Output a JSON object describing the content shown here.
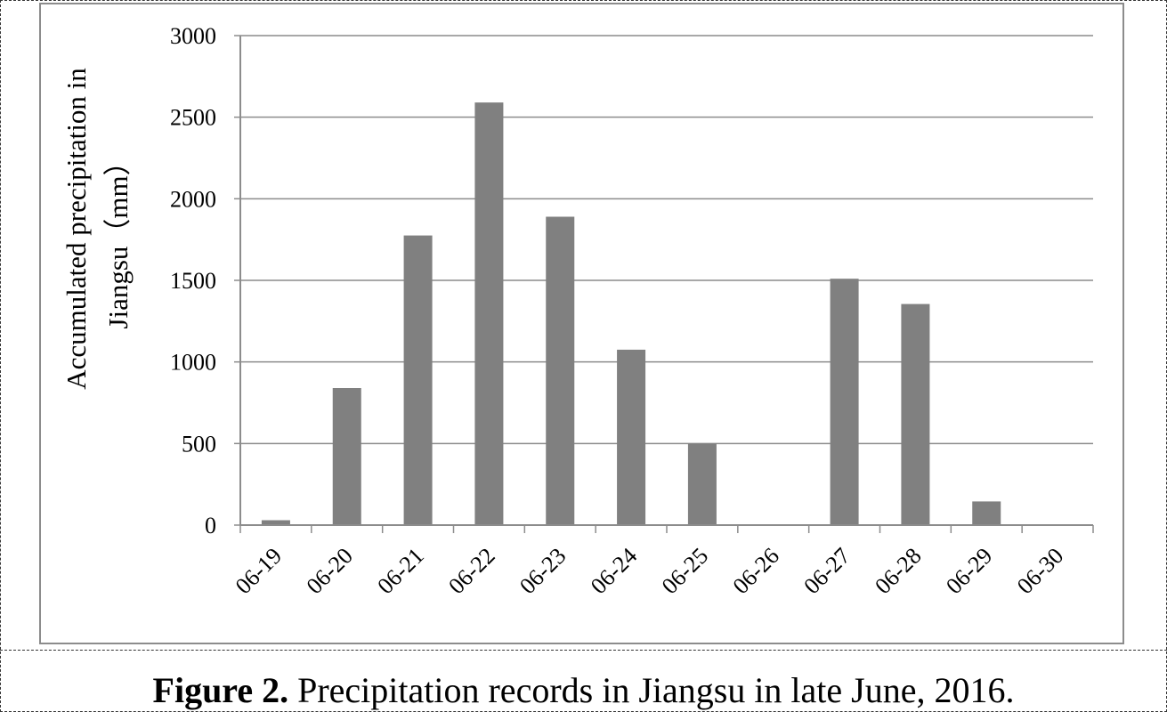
{
  "caption": {
    "label": "Figure 2.",
    "text": " Precipitation records in Jiangsu in late June, 2016."
  },
  "chart_data": {
    "type": "bar",
    "categories": [
      "06-19",
      "06-20",
      "06-21",
      "06-22",
      "06-23",
      "06-24",
      "06-25",
      "06-26",
      "06-27",
      "06-28",
      "06-29",
      "06-30"
    ],
    "values": [
      30,
      840,
      1775,
      2590,
      1890,
      1075,
      500,
      0,
      1510,
      1355,
      145,
      0
    ],
    "ylabel_lines": [
      "Accumulated  precipitation  in",
      "Jiangsu（mm）"
    ],
    "xlabel": "",
    "ylim": [
      0,
      3000
    ],
    "yticks": [
      0,
      500,
      1000,
      1500,
      2000,
      2500,
      3000
    ],
    "grid": true,
    "bar_color": "#808080",
    "grid_color": "#8c8c8c"
  }
}
